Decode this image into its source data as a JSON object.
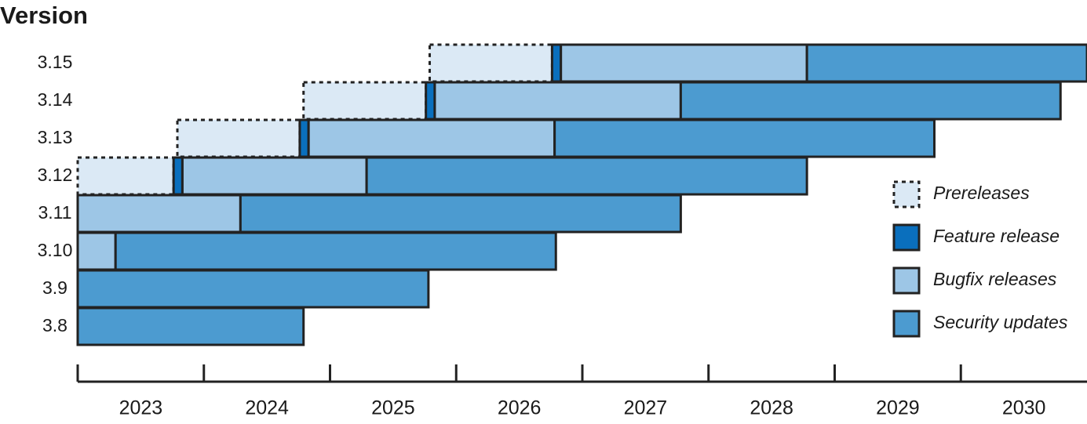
{
  "chart_data": {
    "type": "timeline",
    "y_label": "Version",
    "categories": [
      "3.15",
      "3.14",
      "3.13",
      "3.12",
      "3.11",
      "3.10",
      "3.9",
      "3.8"
    ],
    "xlim": [
      2023,
      2031
    ],
    "xticks": [
      2023,
      2024,
      2025,
      2026,
      2027,
      2028,
      2029,
      2030
    ],
    "series": [
      {
        "name": "Prereleases",
        "color": "#dbe9f5",
        "border": "dotted",
        "start": [
          2025.79,
          2024.79,
          2023.79,
          2023.0,
          null,
          null,
          null,
          null
        ],
        "end": [
          2026.76,
          2025.76,
          2024.76,
          2023.76,
          null,
          null,
          null,
          null
        ]
      },
      {
        "name": "Feature release",
        "color": "#0a6fbd",
        "border": "solid",
        "start": [
          2026.76,
          2025.76,
          2024.76,
          2023.76,
          null,
          null,
          null,
          null
        ],
        "end": [
          2026.83,
          2025.83,
          2024.83,
          2023.83,
          null,
          null,
          null,
          null
        ]
      },
      {
        "name": "Bugfix releases",
        "color": "#9dc6e6",
        "border": "solid",
        "start": [
          2026.83,
          2025.83,
          2024.83,
          2023.83,
          2023.0,
          2023.0,
          null,
          null
        ],
        "end": [
          2028.78,
          2027.78,
          2026.78,
          2025.29,
          2024.29,
          2023.3,
          null,
          null
        ]
      },
      {
        "name": "Security updates",
        "color": "#4c9bd0",
        "border": "solid",
        "start": [
          2028.78,
          2027.78,
          2026.78,
          2025.29,
          2024.29,
          2023.3,
          2023.0,
          2023.0
        ],
        "end": [
          2031.0,
          2030.79,
          2029.79,
          2028.78,
          2027.78,
          2026.79,
          2025.78,
          2024.79
        ]
      }
    ]
  }
}
